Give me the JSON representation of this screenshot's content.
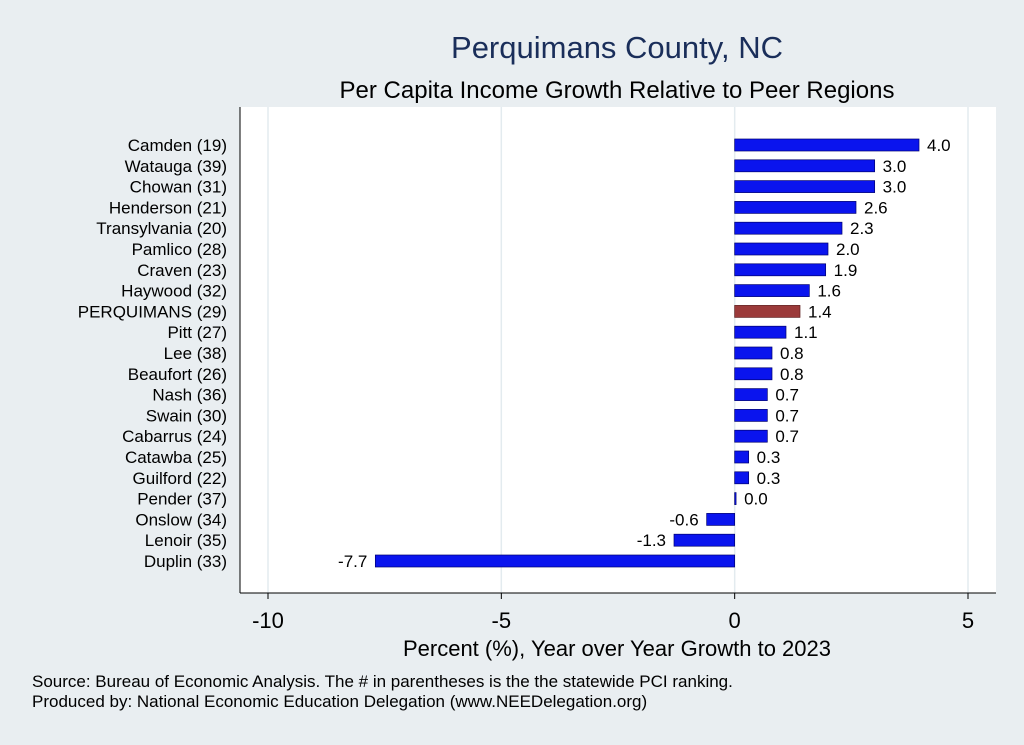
{
  "chart_data": {
    "type": "bar",
    "orientation": "horizontal",
    "title": "Perquimans County, NC",
    "subtitle": "Per Capita Income Growth Relative to Peer Regions",
    "xlabel": "Percent (%), Year over Year Growth to 2023",
    "ylabel": "",
    "xlim": [
      -10.6,
      5.6
    ],
    "xticks": [
      -10,
      -5,
      0,
      5
    ],
    "xtick_labels": [
      "-10",
      "-5",
      "0",
      "5"
    ],
    "grid": true,
    "categories": [
      "Camden (19)",
      "Watauga (39)",
      "Chowan (31)",
      "Henderson (21)",
      "Transylvania (20)",
      "Pamlico (28)",
      "Craven (23)",
      "Haywood (32)",
      "PERQUIMANS (29)",
      "Pitt (27)",
      "Lee (38)",
      "Beaufort (26)",
      "Nash (36)",
      "Swain (30)",
      "Cabarrus (24)",
      "Catawba (25)",
      "Guilford (22)",
      "Pender (37)",
      "Onslow (34)",
      "Lenoir (35)",
      "Duplin (33)"
    ],
    "values": [
      3.95,
      3.0,
      3.0,
      2.6,
      2.3,
      2.0,
      1.95,
      1.6,
      1.4,
      1.1,
      0.8,
      0.8,
      0.7,
      0.7,
      0.7,
      0.3,
      0.3,
      0.03,
      -0.6,
      -1.3,
      -7.7
    ],
    "value_labels": [
      "4.0",
      "3.0",
      "3.0",
      "2.6",
      "2.3",
      "2.0",
      "1.9",
      "1.6",
      "1.4",
      "1.1",
      "0.8",
      "0.8",
      "0.7",
      "0.7",
      "0.7",
      "0.3",
      "0.3",
      "0.0",
      "-0.6",
      "-1.3",
      "-7.7"
    ],
    "highlight_category": "PERQUIMANS (29)",
    "colors": {
      "bar": "#0a14ee",
      "highlight": "#9b3a3a",
      "background": "#e9eef1",
      "plot_background": "#ffffff",
      "grid": "#e3ebef",
      "title": "#1a2e5a"
    }
  },
  "footer": {
    "source": "Source: Bureau of Economic Analysis. The # in parentheses is the the statewide PCI ranking.",
    "produced_by": "Produced by: National Economic Education Delegation (www.NEEDelegation.org)"
  }
}
